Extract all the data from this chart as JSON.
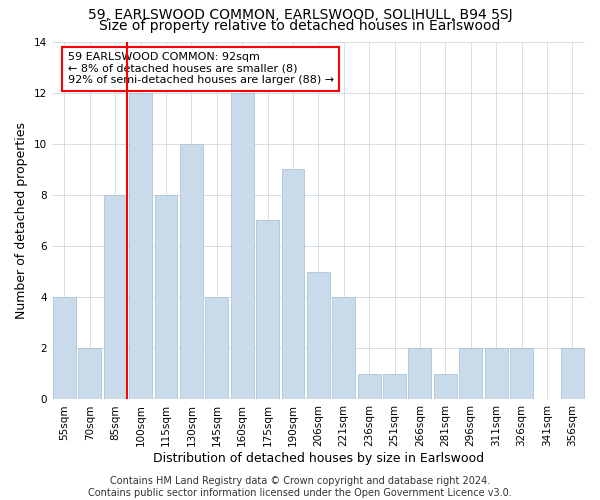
{
  "title": "59, EARLSWOOD COMMON, EARLSWOOD, SOLIHULL, B94 5SJ",
  "subtitle": "Size of property relative to detached houses in Earlswood",
  "xlabel": "Distribution of detached houses by size in Earlswood",
  "ylabel": "Number of detached properties",
  "categories": [
    "55sqm",
    "70sqm",
    "85sqm",
    "100sqm",
    "115sqm",
    "130sqm",
    "145sqm",
    "160sqm",
    "175sqm",
    "190sqm",
    "206sqm",
    "221sqm",
    "236sqm",
    "251sqm",
    "266sqm",
    "281sqm",
    "296sqm",
    "311sqm",
    "326sqm",
    "341sqm",
    "356sqm"
  ],
  "values": [
    4,
    2,
    8,
    12,
    8,
    10,
    4,
    12,
    7,
    9,
    5,
    4,
    1,
    1,
    2,
    1,
    2,
    2,
    2,
    0,
    2
  ],
  "bar_color": "#c9daea",
  "bar_edgecolor": "#aec6d8",
  "red_line_x": 2,
  "annotation_text": "59 EARLSWOOD COMMON: 92sqm\n← 8% of detached houses are smaller (8)\n92% of semi-detached houses are larger (88) →",
  "ylim": [
    0,
    14
  ],
  "yticks": [
    0,
    2,
    4,
    6,
    8,
    10,
    12,
    14
  ],
  "footer_line1": "Contains HM Land Registry data © Crown copyright and database right 2024.",
  "footer_line2": "Contains public sector information licensed under the Open Government Licence v3.0.",
  "background_color": "#ffffff",
  "grid_color": "#d0d8e0",
  "title_fontsize": 10,
  "subtitle_fontsize": 10,
  "axis_label_fontsize": 9,
  "tick_fontsize": 7.5,
  "annotation_fontsize": 8,
  "footer_fontsize": 7
}
